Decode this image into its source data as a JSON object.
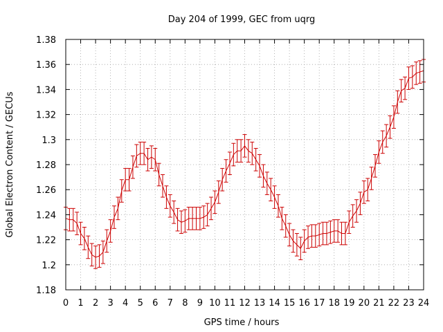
{
  "chart_data": {
    "type": "line",
    "title": "Day 204 of 1999, GEC from uqrg",
    "xlabel": "GPS time / hours",
    "ylabel": "Global Electron Content / GECUs",
    "xlim": [
      0,
      24
    ],
    "ylim": [
      1.18,
      1.38
    ],
    "xticks": [
      "0",
      "1",
      "2",
      "3",
      "4",
      "5",
      "6",
      "7",
      "8",
      "9",
      "10",
      "11",
      "12",
      "13",
      "14",
      "15",
      "16",
      "17",
      "18",
      "19",
      "20",
      "21",
      "22",
      "23",
      "24"
    ],
    "yticks": [
      "1.18",
      "1.2",
      "1.22",
      "1.24",
      "1.26",
      "1.28",
      "1.3",
      "1.32",
      "1.34",
      "1.36",
      "1.38"
    ],
    "grid": true,
    "colors": {
      "series": "#cc0000",
      "grid": "#a0a0a0",
      "axis": "#000000"
    },
    "error": 0.009,
    "series": [
      {
        "name": "GEC",
        "x": [
          0,
          0.25,
          0.5,
          0.75,
          1,
          1.25,
          1.5,
          1.75,
          2,
          2.25,
          2.5,
          2.75,
          3,
          3.25,
          3.5,
          3.75,
          4,
          4.25,
          4.5,
          4.75,
          5,
          5.25,
          5.5,
          5.75,
          6,
          6.25,
          6.5,
          6.75,
          7,
          7.25,
          7.5,
          7.75,
          8,
          8.25,
          8.5,
          8.75,
          9,
          9.25,
          9.5,
          9.75,
          10,
          10.25,
          10.5,
          10.75,
          11,
          11.25,
          11.5,
          11.75,
          12,
          12.25,
          12.5,
          12.75,
          13,
          13.25,
          13.5,
          13.75,
          14,
          14.25,
          14.5,
          14.75,
          15,
          15.25,
          15.5,
          15.75,
          16,
          16.25,
          16.5,
          16.75,
          17,
          17.25,
          17.5,
          17.75,
          18,
          18.25,
          18.5,
          18.75,
          19,
          19.25,
          19.5,
          19.75,
          20,
          20.25,
          20.5,
          20.75,
          21,
          21.25,
          21.5,
          21.75,
          22,
          22.25,
          22.5,
          22.75,
          23,
          23.25,
          23.5,
          23.75,
          24
        ],
        "y": [
          1.237,
          1.236,
          1.236,
          1.233,
          1.225,
          1.221,
          1.214,
          1.208,
          1.206,
          1.207,
          1.21,
          1.219,
          1.227,
          1.238,
          1.245,
          1.259,
          1.268,
          1.268,
          1.278,
          1.287,
          1.289,
          1.289,
          1.284,
          1.286,
          1.284,
          1.272,
          1.263,
          1.254,
          1.247,
          1.242,
          1.236,
          1.234,
          1.235,
          1.237,
          1.237,
          1.237,
          1.237,
          1.238,
          1.24,
          1.245,
          1.25,
          1.258,
          1.268,
          1.275,
          1.281,
          1.288,
          1.291,
          1.291,
          1.295,
          1.291,
          1.289,
          1.284,
          1.279,
          1.271,
          1.265,
          1.26,
          1.254,
          1.247,
          1.237,
          1.231,
          1.224,
          1.219,
          1.216,
          1.213,
          1.219,
          1.222,
          1.223,
          1.223,
          1.224,
          1.225,
          1.225,
          1.226,
          1.227,
          1.227,
          1.225,
          1.225,
          1.234,
          1.239,
          1.243,
          1.249,
          1.258,
          1.26,
          1.269,
          1.279,
          1.29,
          1.298,
          1.303,
          1.31,
          1.318,
          1.33,
          1.339,
          1.341,
          1.349,
          1.35,
          1.353,
          1.354,
          1.355
        ]
      }
    ]
  }
}
